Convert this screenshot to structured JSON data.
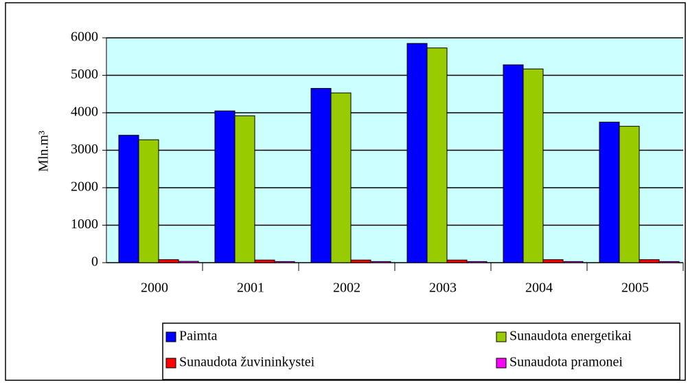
{
  "chart_data": {
    "type": "bar",
    "y_label": "Mln.m³",
    "categories": [
      "2000",
      "2001",
      "2002",
      "2003",
      "2004",
      "2005"
    ],
    "series": [
      {
        "name": "Paimta",
        "color": "#0000ff",
        "values": [
          3400,
          4050,
          4650,
          5850,
          5280,
          3750
        ]
      },
      {
        "name": "Sunaudota energetikai",
        "color": "#99cc00",
        "values": [
          3280,
          3920,
          4530,
          5730,
          5170,
          3640
        ]
      },
      {
        "name": "Sunaudota žuvininkystei",
        "color": "#ff0000",
        "values": [
          80,
          70,
          70,
          70,
          80,
          80
        ]
      },
      {
        "name": "Sunaudota pramonei",
        "color": "#ff00ff",
        "values": [
          35,
          30,
          30,
          30,
          30,
          30
        ]
      }
    ],
    "ylim": [
      0,
      6000
    ],
    "yticks": [
      0,
      1000,
      2000,
      3000,
      4000,
      5000,
      6000
    ],
    "grid": true,
    "background": "#ccffff",
    "legend": "bottom"
  }
}
